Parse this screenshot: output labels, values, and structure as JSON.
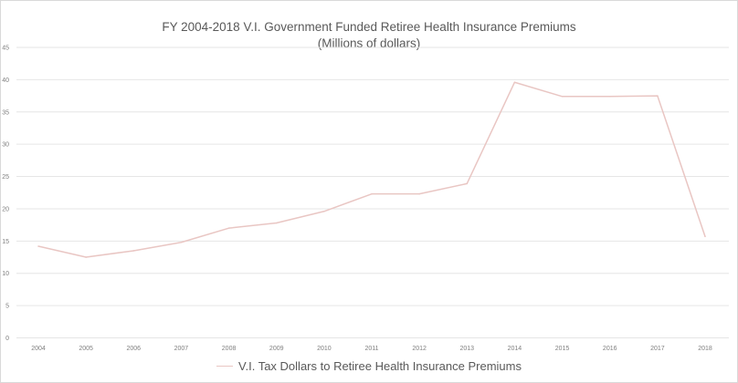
{
  "chart_data": {
    "type": "line",
    "title": "FY 2004-2018 V.I. Government Funded Retiree Health Insurance Premiums",
    "subtitle": "(Millions of dollars)",
    "xlabel": "",
    "ylabel": "",
    "categories": [
      "2004",
      "2005",
      "2006",
      "2007",
      "2008",
      "2009",
      "2010",
      "2011",
      "2012",
      "2013",
      "2014",
      "2015",
      "2016",
      "2017",
      "2018"
    ],
    "yticks": [
      0,
      5,
      10,
      15,
      20,
      25,
      30,
      35,
      40,
      45
    ],
    "ylim": [
      0,
      45
    ],
    "grid": true,
    "legend_position": "bottom",
    "series": [
      {
        "name": "V.I. Tax Dollars to Retiree Health Insurance Premiums",
        "color": "#e9c6c3",
        "values": [
          14.2,
          12.5,
          13.5,
          14.8,
          17.0,
          17.8,
          19.6,
          22.3,
          22.3,
          23.9,
          39.6,
          37.4,
          37.4,
          37.5,
          15.7
        ]
      }
    ]
  },
  "colors": {
    "gridline": "#e6e6e6",
    "text": "#595959",
    "tick_text": "#7f7f7f"
  }
}
